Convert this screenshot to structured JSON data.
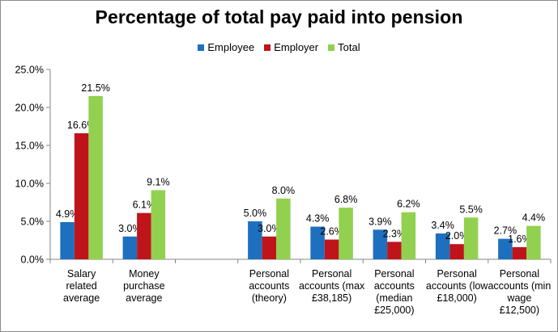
{
  "chart_data": {
    "type": "bar",
    "title": "Percentage of total pay paid into pension",
    "categories": [
      [
        "Salary",
        "related",
        "average"
      ],
      [
        "Money",
        "purchase",
        "average"
      ],
      [
        ""
      ],
      [
        "Personal",
        "accounts",
        "(theory)"
      ],
      [
        "Personal",
        "accounts (max",
        "£38,185)"
      ],
      [
        "Personal",
        "accounts",
        "(median",
        "£25,000)"
      ],
      [
        "Personal",
        "accounts (low",
        "£18,000)"
      ],
      [
        "Personal",
        "accounts (min",
        "wage",
        "£12,500)"
      ]
    ],
    "series": [
      {
        "name": "Employee",
        "color": "#1f6fbf",
        "values": [
          4.9,
          3.0,
          null,
          5.0,
          4.3,
          3.9,
          3.4,
          2.7
        ],
        "labels": [
          "4.9%",
          "3.0%",
          "",
          "5.0%",
          "4.3%",
          "3.9%",
          "3.4%",
          "2.7%"
        ]
      },
      {
        "name": "Employer",
        "color": "#c0141b",
        "values": [
          16.6,
          6.1,
          null,
          3.0,
          2.6,
          2.3,
          2.0,
          1.6
        ],
        "labels": [
          "16.6%",
          "6.1%",
          "",
          "3.0%",
          "2.6%",
          "2.3%",
          "2.0%",
          "1.6%"
        ]
      },
      {
        "name": "Total",
        "color": "#92d050",
        "values": [
          21.5,
          9.1,
          null,
          8.0,
          6.8,
          6.2,
          5.5,
          4.4
        ],
        "labels": [
          "21.5%",
          "9.1%",
          "",
          "8.0%",
          "6.8%",
          "6.2%",
          "5.5%",
          "4.4%"
        ]
      }
    ],
    "yticks": [
      "0.0%",
      "5.0%",
      "10.0%",
      "15.0%",
      "20.0%",
      "25.0%"
    ],
    "ylim": [
      0,
      25
    ],
    "legend_position": "top",
    "grid": false
  }
}
